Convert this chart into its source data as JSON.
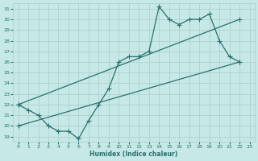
{
  "xlabel": "Humidex (Indice chaleur)",
  "xlim": [
    -0.5,
    23.5
  ],
  "ylim": [
    18.5,
    31.5
  ],
  "yticks": [
    19,
    20,
    21,
    22,
    23,
    24,
    25,
    26,
    27,
    28,
    29,
    30,
    31
  ],
  "xticks": [
    0,
    1,
    2,
    3,
    4,
    5,
    6,
    7,
    8,
    9,
    10,
    11,
    12,
    13,
    14,
    15,
    16,
    17,
    18,
    19,
    20,
    21,
    22,
    23
  ],
  "background_color": "#c6e8e6",
  "grid_color": "#a8cecc",
  "line_color": "#2a7070",
  "line1_zigzag": {
    "x": [
      0,
      1,
      2,
      3,
      4,
      5,
      6,
      7,
      8,
      9,
      10,
      11,
      12,
      13,
      14,
      15,
      16,
      17,
      18,
      19,
      20,
      21,
      22
    ],
    "y": [
      22.0,
      21.5,
      21.0,
      20.0,
      19.5,
      19.5,
      18.8,
      20.5,
      22.0,
      23.5,
      26.0,
      26.5,
      26.5,
      27.0,
      31.2,
      30.0,
      29.5,
      30.0,
      30.0,
      30.5,
      28.0,
      26.5,
      26.0
    ]
  },
  "line2_upper_diag": {
    "x": [
      0,
      9,
      10,
      11,
      12,
      13,
      14,
      15,
      16,
      17,
      18,
      19,
      20,
      21,
      22
    ],
    "y": [
      22.0,
      25.0,
      25.5,
      26.0,
      26.5,
      27.0,
      31.2,
      30.0,
      29.5,
      30.0,
      30.0,
      30.5,
      28.0,
      27.0,
      30.0
    ]
  },
  "line3_lower_diag": {
    "x": [
      0,
      22
    ],
    "y": [
      20.0,
      26.0
    ]
  }
}
